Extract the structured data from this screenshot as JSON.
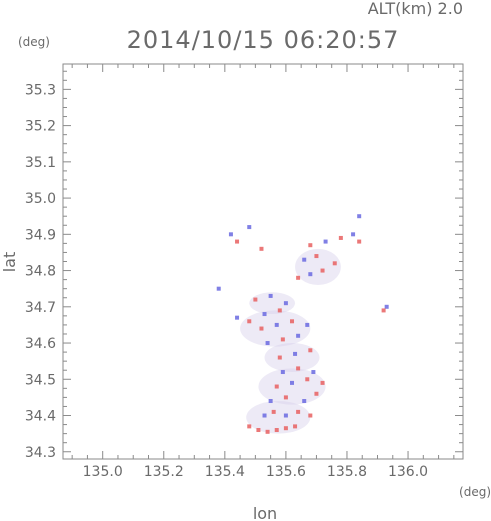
{
  "chart_data": {
    "type": "scatter",
    "title": "2014/10/15 06:20:57",
    "subtitle": "ALT(km) 2.0",
    "xlabel": "lon",
    "ylabel": "lat",
    "x_unit": "(deg)",
    "y_unit": "(deg)",
    "xlim": [
      134.87,
      136.18
    ],
    "ylim": [
      34.28,
      35.37
    ],
    "x_ticks": [
      "135.0",
      "135.2",
      "135.4",
      "135.6",
      "135.8",
      "136.0"
    ],
    "y_ticks": [
      "34.3",
      "34.4",
      "34.5",
      "34.6",
      "34.7",
      "34.8",
      "34.9",
      "35.0",
      "35.1",
      "35.2",
      "35.3"
    ],
    "grid": false,
    "colors": {
      "positive": "#e86060",
      "negative": "#6a6ae0",
      "weak": "#d8d0ec",
      "frame": "#8a8a8a"
    },
    "series": [
      {
        "values": [
          {
            "x": 135.48,
            "y": 34.37,
            "v": 1
          },
          {
            "x": 135.51,
            "y": 34.36,
            "v": 1
          },
          {
            "x": 135.54,
            "y": 34.355,
            "v": 1
          },
          {
            "x": 135.57,
            "y": 34.36,
            "v": 1
          },
          {
            "x": 135.6,
            "y": 34.365,
            "v": 1
          },
          {
            "x": 135.63,
            "y": 34.37,
            "v": 1
          },
          {
            "x": 135.53,
            "y": 34.4,
            "v": -1
          },
          {
            "x": 135.56,
            "y": 34.41,
            "v": 1
          },
          {
            "x": 135.6,
            "y": 34.4,
            "v": -1
          },
          {
            "x": 135.64,
            "y": 34.41,
            "v": 1
          },
          {
            "x": 135.68,
            "y": 34.4,
            "v": 1
          },
          {
            "x": 135.55,
            "y": 34.44,
            "v": -1
          },
          {
            "x": 135.6,
            "y": 34.45,
            "v": 1
          },
          {
            "x": 135.66,
            "y": 34.44,
            "v": -1
          },
          {
            "x": 135.7,
            "y": 34.46,
            "v": 1
          },
          {
            "x": 135.57,
            "y": 34.48,
            "v": 1
          },
          {
            "x": 135.62,
            "y": 34.49,
            "v": -1
          },
          {
            "x": 135.67,
            "y": 34.5,
            "v": 1
          },
          {
            "x": 135.72,
            "y": 34.49,
            "v": 1
          },
          {
            "x": 135.59,
            "y": 34.52,
            "v": -1
          },
          {
            "x": 135.64,
            "y": 34.53,
            "v": 1
          },
          {
            "x": 135.69,
            "y": 34.52,
            "v": -1
          },
          {
            "x": 135.58,
            "y": 34.56,
            "v": 1
          },
          {
            "x": 135.63,
            "y": 34.57,
            "v": -1
          },
          {
            "x": 135.68,
            "y": 34.58,
            "v": 1
          },
          {
            "x": 135.54,
            "y": 34.6,
            "v": -1
          },
          {
            "x": 135.59,
            "y": 34.61,
            "v": 1
          },
          {
            "x": 135.64,
            "y": 34.62,
            "v": -1
          },
          {
            "x": 135.52,
            "y": 34.64,
            "v": 1
          },
          {
            "x": 135.57,
            "y": 34.65,
            "v": -1
          },
          {
            "x": 135.62,
            "y": 34.66,
            "v": 1
          },
          {
            "x": 135.67,
            "y": 34.65,
            "v": -1
          },
          {
            "x": 135.44,
            "y": 34.67,
            "v": -1
          },
          {
            "x": 135.48,
            "y": 34.66,
            "v": 1
          },
          {
            "x": 135.53,
            "y": 34.68,
            "v": -1
          },
          {
            "x": 135.58,
            "y": 34.69,
            "v": 1
          },
          {
            "x": 135.5,
            "y": 34.72,
            "v": 1
          },
          {
            "x": 135.55,
            "y": 34.73,
            "v": -1
          },
          {
            "x": 135.6,
            "y": 34.71,
            "v": -1
          },
          {
            "x": 135.64,
            "y": 34.78,
            "v": 1
          },
          {
            "x": 135.68,
            "y": 34.79,
            "v": -1
          },
          {
            "x": 135.72,
            "y": 34.8,
            "v": 1
          },
          {
            "x": 135.76,
            "y": 34.82,
            "v": 1
          },
          {
            "x": 135.66,
            "y": 34.83,
            "v": -1
          },
          {
            "x": 135.7,
            "y": 34.84,
            "v": 1
          },
          {
            "x": 135.68,
            "y": 34.87,
            "v": 1
          },
          {
            "x": 135.73,
            "y": 34.88,
            "v": -1
          },
          {
            "x": 135.78,
            "y": 34.89,
            "v": 1
          },
          {
            "x": 135.82,
            "y": 34.9,
            "v": -1
          },
          {
            "x": 135.84,
            "y": 34.88,
            "v": 1
          },
          {
            "x": 135.84,
            "y": 34.95,
            "v": -1
          },
          {
            "x": 135.42,
            "y": 34.9,
            "v": -1
          },
          {
            "x": 135.44,
            "y": 34.88,
            "v": 1
          },
          {
            "x": 135.48,
            "y": 34.92,
            "v": -1
          },
          {
            "x": 135.52,
            "y": 34.86,
            "v": 1
          },
          {
            "x": 135.93,
            "y": 34.7,
            "v": -1
          },
          {
            "x": 135.92,
            "y": 34.69,
            "v": 1
          },
          {
            "x": 135.38,
            "y": 34.75,
            "v": -1
          }
        ]
      }
    ]
  }
}
